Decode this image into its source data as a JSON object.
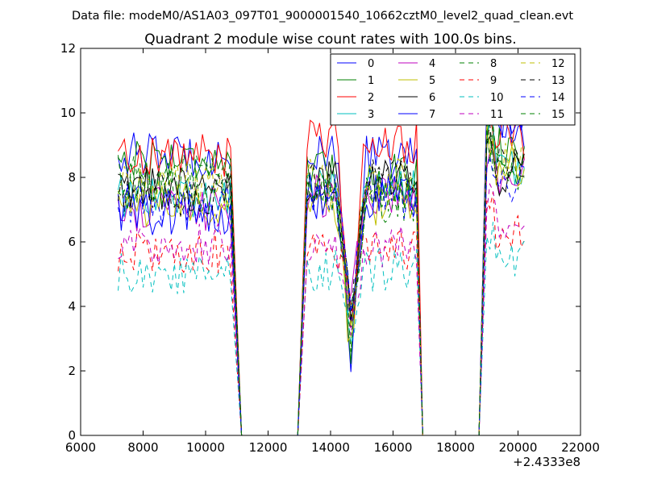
{
  "chart_data": {
    "type": "line",
    "suptitle": "Data file: modeM0/AS1A03_097T01_9000001540_10662cztM0_level2_quad_clean.evt",
    "title": "Quadrant 2 module wise count rates with 100.0s bins.",
    "xlabel": "",
    "ylabel": "",
    "x_offset_label": "+2.4333e8",
    "xlim": [
      6000,
      22000
    ],
    "ylim": [
      0,
      12
    ],
    "x_ticks": [
      "6000",
      "8000",
      "10000",
      "12000",
      "14000",
      "16000",
      "18000",
      "20000",
      "22000"
    ],
    "y_ticks": [
      "0",
      "2",
      "4",
      "6",
      "8",
      "10",
      "12"
    ],
    "grid": false,
    "legend_position": "upper-right",
    "legend_columns": 4,
    "segments": [
      {
        "start": 7200,
        "end": 10850,
        "fall_end": 11150
      },
      {
        "start": 13250,
        "end": 16750,
        "rise_start": 12950,
        "fall_end": 16950
      },
      {
        "start": 19000,
        "end": 20200,
        "rise_start": 18750
      }
    ],
    "series": [
      {
        "name": "0",
        "color": "#0000ff",
        "style": "solid",
        "levels": [
          8.7,
          8.6,
          9.5
        ]
      },
      {
        "name": "1",
        "color": "#008000",
        "style": "solid",
        "levels": [
          8.6,
          8.1,
          8.9
        ]
      },
      {
        "name": "2",
        "color": "#ff0000",
        "style": "solid",
        "levels": [
          8.7,
          9.1,
          9.2
        ]
      },
      {
        "name": "3",
        "color": "#00bfbf",
        "style": "solid",
        "levels": [
          7.4,
          7.7,
          8.3
        ]
      },
      {
        "name": "4",
        "color": "#bf00bf",
        "style": "solid",
        "levels": [
          7.0,
          7.4,
          7.9
        ]
      },
      {
        "name": "5",
        "color": "#bfbf00",
        "style": "solid",
        "levels": [
          7.1,
          7.1,
          8.3
        ]
      },
      {
        "name": "6",
        "color": "#000000",
        "style": "solid",
        "levels": [
          7.6,
          7.9,
          8.1
        ]
      },
      {
        "name": "7",
        "color": "#0000ff",
        "style": "solid",
        "levels": [
          6.9,
          7.4,
          9.9
        ]
      },
      {
        "name": "8",
        "color": "#008000",
        "style": "dashed",
        "levels": [
          8.0,
          7.3,
          8.0
        ]
      },
      {
        "name": "9",
        "color": "#ff0000",
        "style": "dashed",
        "levels": [
          5.7,
          5.8,
          6.2
        ]
      },
      {
        "name": "10",
        "color": "#00bfbf",
        "style": "dashed",
        "levels": [
          5.0,
          5.1,
          5.5
        ]
      },
      {
        "name": "11",
        "color": "#bf00bf",
        "style": "dashed",
        "levels": [
          5.9,
          5.9,
          6.7
        ]
      },
      {
        "name": "12",
        "color": "#bfbf00",
        "style": "dashed",
        "levels": [
          7.8,
          7.9,
          8.5
        ]
      },
      {
        "name": "13",
        "color": "#000000",
        "style": "dashed",
        "levels": [
          7.5,
          7.9,
          8.3
        ]
      },
      {
        "name": "14",
        "color": "#0000ff",
        "style": "dashed",
        "levels": [
          7.2,
          7.4,
          7.9
        ]
      },
      {
        "name": "15",
        "color": "#008000",
        "style": "dashed",
        "levels": [
          7.6,
          7.5,
          8.3
        ]
      }
    ]
  }
}
